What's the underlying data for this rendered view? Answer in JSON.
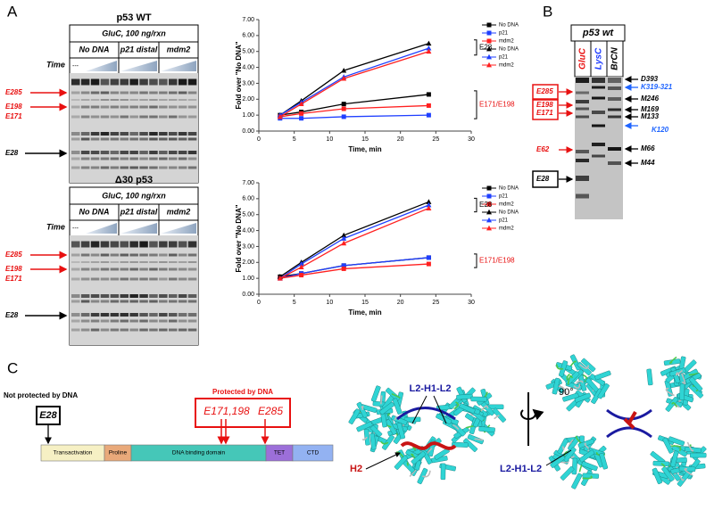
{
  "panel_a": {
    "label": "A",
    "gels": [
      {
        "title": "p53 WT",
        "enzyme": "GluC, 100 ng/rxn",
        "conditions": [
          "No DNA",
          "p21 distal",
          "mdm2"
        ],
        "time_label": "Time",
        "control": "---",
        "bands": [
          "E285",
          "E198",
          "E171",
          "E28"
        ]
      },
      {
        "title": "Δ30 p53",
        "enzyme": "GluC, 100 ng/rxn",
        "conditions": [
          "No DNA",
          "p21 distal",
          "mdm2"
        ],
        "time_label": "Time",
        "control": "---",
        "bands": [
          "E285",
          "E198",
          "E171",
          "E28"
        ]
      }
    ]
  },
  "chart_data": [
    {
      "type": "line",
      "ylabel": "Fold over \"No DNA\"",
      "xlabel": "Time, min",
      "x": [
        3,
        6,
        12,
        24
      ],
      "xlim": [
        0,
        30
      ],
      "xticks": [
        0,
        5,
        10,
        15,
        20,
        25,
        30
      ],
      "ylim": [
        0,
        7
      ],
      "yticks": [
        {
          "value": 0,
          "label": "0.00"
        },
        {
          "value": 1,
          "label": "1.00"
        },
        {
          "value": 2,
          "label": "2.00"
        },
        {
          "value": 3,
          "label": "3.00"
        },
        {
          "value": 4,
          "label": "4.00"
        },
        {
          "value": 5,
          "label": "5.00"
        },
        {
          "value": 6,
          "label": "6.00"
        },
        {
          "value": 7,
          "label": "7.00"
        }
      ],
      "series": [
        {
          "name": "No DNA",
          "color": "#000000",
          "marker": "square",
          "values": [
            1.0,
            1.2,
            1.7,
            2.3
          ]
        },
        {
          "name": "p21",
          "color": "#1f3fff",
          "marker": "square",
          "values": [
            0.8,
            0.8,
            0.9,
            1.0
          ]
        },
        {
          "name": "mdm2",
          "color": "#ff2020",
          "marker": "square",
          "values": [
            0.9,
            1.1,
            1.4,
            1.6
          ]
        },
        {
          "name": "No DNA",
          "color": "#000000",
          "marker": "triangle",
          "values": [
            1.0,
            1.9,
            3.8,
            5.5
          ]
        },
        {
          "name": "p21",
          "color": "#1f3fff",
          "marker": "triangle",
          "values": [
            1.0,
            1.8,
            3.4,
            5.2
          ]
        },
        {
          "name": "mdm2",
          "color": "#ff2020",
          "marker": "triangle",
          "values": [
            0.9,
            1.7,
            3.3,
            5.0
          ]
        }
      ],
      "annotations": [
        "E28",
        "E171/E198"
      ]
    },
    {
      "type": "line",
      "ylabel": "Fold over \"No DNA\"",
      "xlabel": "Time, min",
      "x": [
        3,
        6,
        12,
        24
      ],
      "xlim": [
        0,
        30
      ],
      "xticks": [
        0,
        5,
        10,
        15,
        20,
        25,
        30
      ],
      "ylim": [
        0,
        7
      ],
      "yticks": [
        {
          "value": 0,
          "label": "0.00"
        },
        {
          "value": 1,
          "label": "1.00"
        },
        {
          "value": 2,
          "label": "2.00"
        },
        {
          "value": 3,
          "label": "3.00"
        },
        {
          "value": 4,
          "label": "4.00"
        },
        {
          "value": 5,
          "label": "5.00"
        },
        {
          "value": 6,
          "label": "6.00"
        },
        {
          "value": 7,
          "label": "7.00"
        }
      ],
      "series": [
        {
          "name": "No DNA",
          "color": "#000000",
          "marker": "square",
          "values": [
            1.1,
            1.3,
            1.8,
            2.3
          ]
        },
        {
          "name": "p21",
          "color": "#1f3fff",
          "marker": "square",
          "values": [
            1.0,
            1.3,
            1.8,
            2.3
          ]
        },
        {
          "name": "mdm2",
          "color": "#ff2020",
          "marker": "square",
          "values": [
            1.0,
            1.2,
            1.6,
            1.9
          ]
        },
        {
          "name": "No DNA",
          "color": "#000000",
          "marker": "triangle",
          "values": [
            1.1,
            2.0,
            3.7,
            5.8
          ]
        },
        {
          "name": "p21",
          "color": "#1f3fff",
          "marker": "triangle",
          "values": [
            1.0,
            1.9,
            3.5,
            5.6
          ]
        },
        {
          "name": "mdm2",
          "color": "#ff2020",
          "marker": "triangle",
          "values": [
            1.0,
            1.7,
            3.2,
            5.4
          ]
        }
      ],
      "annotations": [
        "E28",
        "E171/E198"
      ]
    }
  ],
  "panel_b": {
    "label": "B",
    "title": "p53 wt",
    "lanes": [
      "GluC",
      "LysC",
      "BrCN"
    ],
    "left_labels": [
      "E285",
      "E198",
      "E171",
      "E62",
      "E28"
    ],
    "right_labels": [
      "D393",
      "K319-321",
      "M246",
      "M169",
      "M133",
      "K120",
      "M66",
      "M44"
    ]
  },
  "panel_c": {
    "label": "C",
    "unprotected_title": "Not protected by DNA",
    "unprotected_site": "E28",
    "protected_title": "Protected by DNA",
    "protected_sites": [
      "E171,198",
      "E285"
    ],
    "domains": [
      "Transactivation",
      "Proline",
      "DNA binding domain",
      "TET",
      "CTD"
    ],
    "structure_labels": [
      "L2-H1-L2",
      "H2",
      "90°",
      "L2-H1-L2"
    ]
  }
}
